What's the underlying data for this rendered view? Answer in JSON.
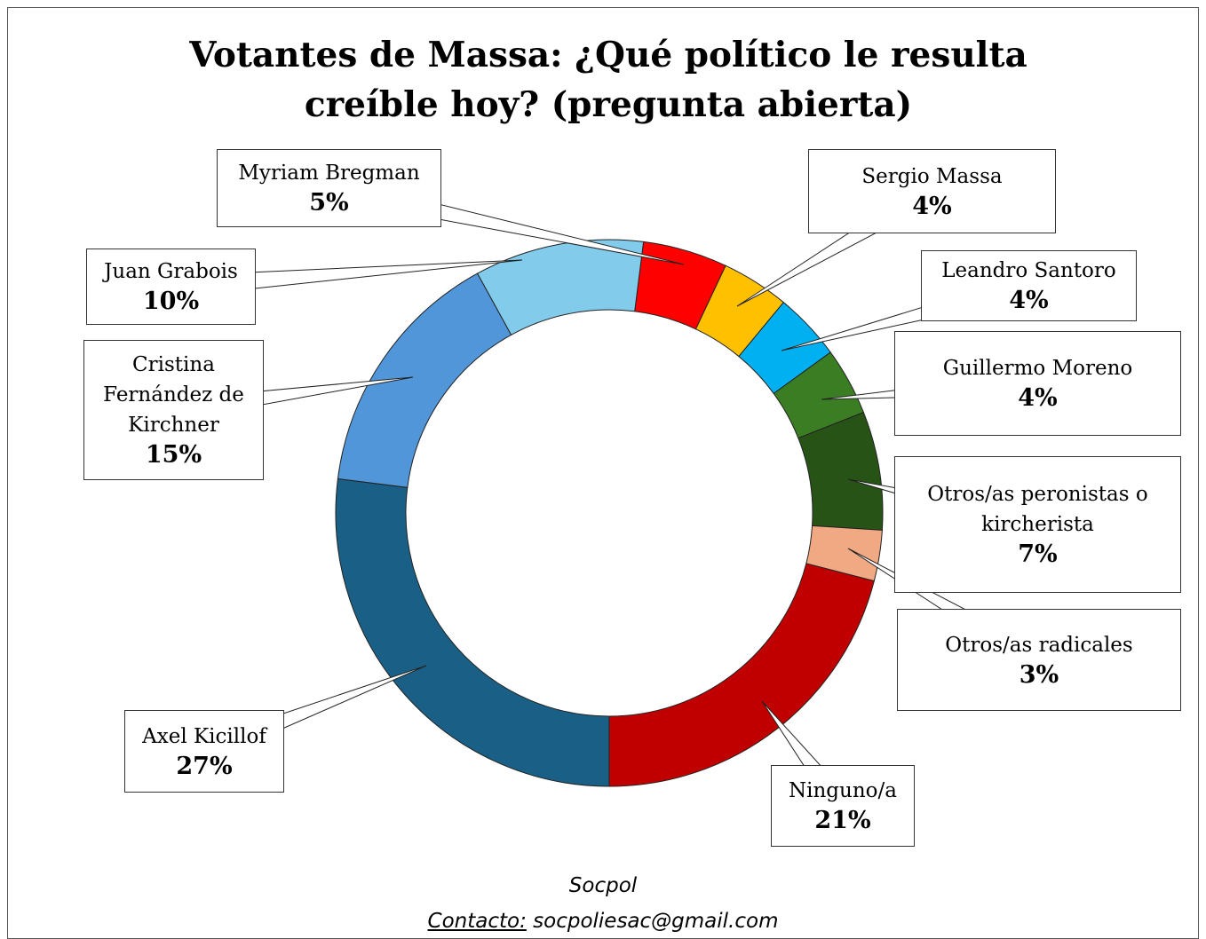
{
  "chart_data": {
    "type": "donut",
    "title": "Votantes de Massa:  ¿Qué político le resulta creíble hoy? (pregunta abierta)",
    "categories": [
      "Myriam Bregman",
      "Sergio Massa",
      "Leandro Santoro",
      "Guillermo Moreno",
      "Otros/as peronistas o kircherista",
      "Otros/as radicales",
      "Ninguno/a",
      "Axel Kicillof",
      "Cristina Fernández de Kirchner",
      "Juan Grabois"
    ],
    "values": [
      5,
      4,
      4,
      4,
      7,
      3,
      21,
      27,
      15,
      10
    ],
    "value_labels": [
      "5%",
      "4%",
      "4%",
      "4%",
      "7%",
      "3%",
      "21%",
      "27%",
      "15%",
      "10%"
    ],
    "colors": [
      "#ff0000",
      "#ffc000",
      "#00b0f0",
      "#3a7d22",
      "#275317",
      "#f1a983",
      "#c00000",
      "#1a5f85",
      "#5096d8",
      "#83cbeb"
    ],
    "source": "Socpol",
    "contact_label": "Contacto:",
    "contact": " socpoliesac@gmail.com"
  }
}
